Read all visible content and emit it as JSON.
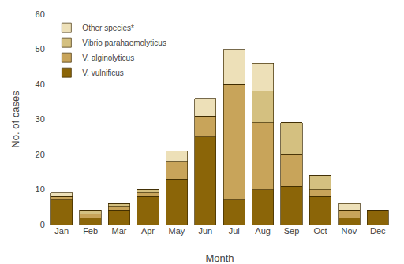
{
  "chart_data": {
    "type": "bar",
    "stacked": true,
    "xlabel": "Month",
    "ylabel": "No. of cases",
    "categories": [
      "Jan",
      "Feb",
      "Mar",
      "Apr",
      "May",
      "Jun",
      "Jul",
      "Aug",
      "Sep",
      "Oct",
      "Nov",
      "Dec"
    ],
    "series": [
      {
        "name": "V. vulnificus",
        "color": "#8B6508",
        "values": [
          7,
          2,
          4,
          8,
          13,
          25,
          7,
          10,
          11,
          8,
          2,
          4
        ]
      },
      {
        "name": "V. alginolyticus",
        "color": "#C8A45A",
        "values": [
          1,
          1,
          1,
          1,
          5,
          6,
          33,
          19,
          9,
          2,
          2,
          0
        ]
      },
      {
        "name": "Vibrio parahaemolyticus",
        "color": "#D4C080",
        "values": [
          0,
          1,
          1,
          1,
          0,
          0,
          0,
          9,
          9,
          4,
          0,
          0
        ]
      },
      {
        "name": "Other species*",
        "color": "#EDE0B8",
        "values": [
          1,
          0,
          0,
          0,
          3,
          5,
          10,
          8,
          0,
          0,
          2,
          0
        ]
      }
    ],
    "ylim": [
      0,
      60
    ],
    "yticks": [
      0,
      10,
      20,
      30,
      40,
      50,
      60
    ],
    "grid": false,
    "legend": "upper left"
  }
}
